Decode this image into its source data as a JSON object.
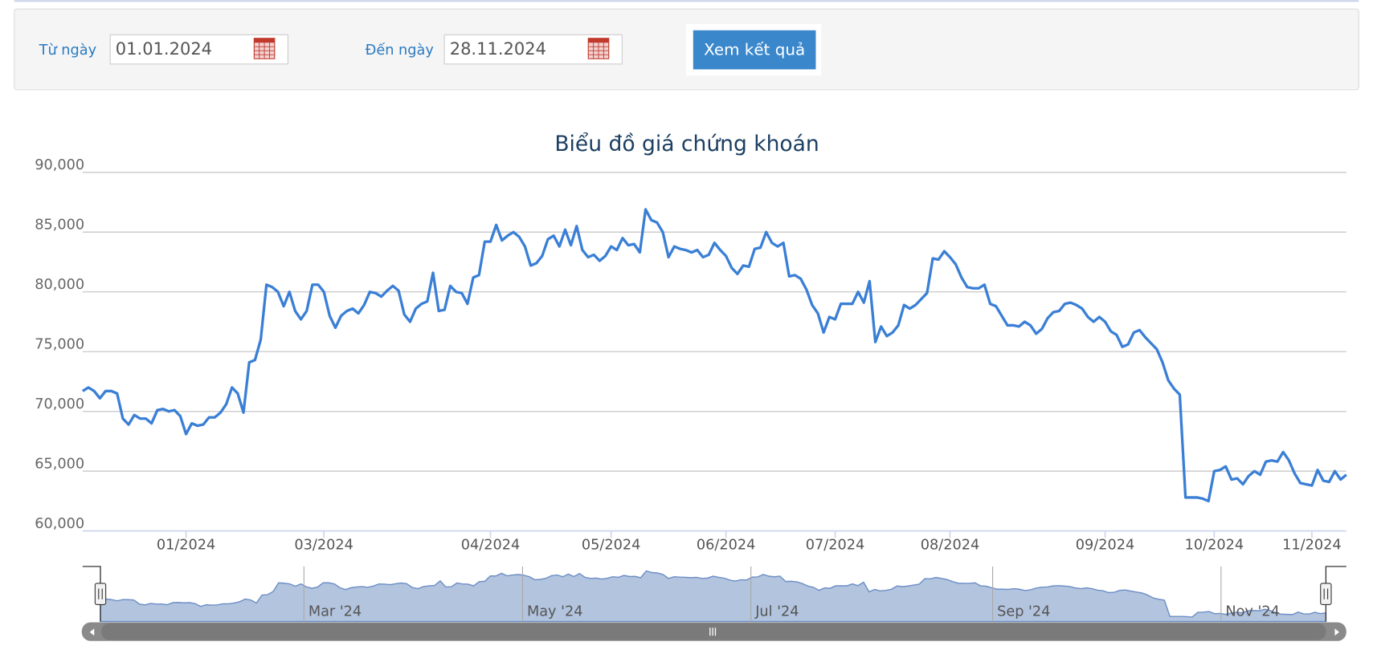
{
  "form": {
    "from_label": "Từ ngày",
    "from_value": "01.01.2024",
    "to_label": "Đến ngày",
    "to_value": "28.11.2024",
    "button": "Xem kết quả"
  },
  "chart_data": {
    "type": "line",
    "title": "Biểu đồ giá chứng khoán",
    "color": "#3a7fd5",
    "grid": true,
    "ylim": [
      60000,
      90000
    ],
    "yticks": [
      {
        "value": 60000,
        "label": "60,000"
      },
      {
        "value": 65000,
        "label": "65,000"
      },
      {
        "value": 70000,
        "label": "70,000"
      },
      {
        "value": 75000,
        "label": "75,000"
      },
      {
        "value": 80000,
        "label": "80,000"
      },
      {
        "value": 85000,
        "label": "85,000"
      },
      {
        "value": 90000,
        "label": "90,000"
      }
    ],
    "categories": [
      null,
      null,
      null,
      null,
      null,
      null,
      null,
      null,
      null,
      null,
      null,
      null,
      null,
      null,
      null,
      null,
      null,
      null,
      "01/2024",
      null,
      null,
      null,
      null,
      null,
      null,
      null,
      null,
      null,
      null,
      null,
      null,
      null,
      null,
      null,
      null,
      null,
      null,
      null,
      null,
      null,
      null,
      null,
      "03/2024",
      null,
      null,
      null,
      null,
      null,
      null,
      null,
      null,
      null,
      null,
      null,
      null,
      null,
      null,
      null,
      null,
      null,
      null,
      null,
      null,
      null,
      null,
      null,
      null,
      null,
      null,
      null,
      null,
      "04/2024",
      null,
      null,
      null,
      null,
      null,
      null,
      null,
      null,
      null,
      null,
      null,
      null,
      null,
      null,
      null,
      null,
      null,
      null,
      null,
      null,
      "05/2024",
      null,
      null,
      null,
      null,
      null,
      null,
      null,
      null,
      null,
      null,
      null,
      null,
      null,
      null,
      null,
      null,
      null,
      null,
      null,
      "06/2024",
      null,
      null,
      null,
      null,
      null,
      null,
      null,
      null,
      null,
      null,
      null,
      null,
      null,
      null,
      null,
      null,
      null,
      null,
      "07/2024",
      null,
      null,
      null,
      null,
      null,
      null,
      null,
      null,
      null,
      null,
      null,
      null,
      null,
      null,
      null,
      null,
      null,
      null,
      null,
      "08/2024",
      null,
      null,
      null,
      null,
      null,
      null,
      null,
      null,
      null,
      null,
      null,
      null,
      null,
      null,
      null,
      null,
      null,
      null,
      null,
      null,
      null,
      null,
      null,
      null,
      null,
      null,
      "09/2024",
      null,
      null,
      null,
      null,
      null,
      null,
      null,
      null,
      null,
      null,
      null,
      null,
      null,
      null,
      null,
      null,
      null,
      null,
      "10/2024",
      null,
      null,
      null,
      null,
      null,
      null,
      null,
      null,
      null,
      null,
      null,
      null,
      null,
      null,
      null,
      null,
      "11/2024",
      null,
      null,
      null,
      null,
      null,
      null
    ],
    "values": [
      71700,
      72000,
      71700,
      71100,
      71700,
      71700,
      71500,
      69400,
      68900,
      69700,
      69400,
      69400,
      69000,
      70100,
      70200,
      70000,
      70100,
      69600,
      68100,
      69000,
      68800,
      68900,
      69500,
      69500,
      69900,
      70600,
      72000,
      71500,
      69900,
      74100,
      74300,
      76000,
      80600,
      80400,
      80000,
      78800,
      80000,
      78400,
      77700,
      78400,
      80600,
      80600,
      80000,
      78000,
      77000,
      78000,
      78400,
      78600,
      78200,
      78900,
      80000,
      79900,
      79600,
      80100,
      80500,
      80100,
      78100,
      77500,
      78600,
      79000,
      79200,
      81600,
      78400,
      78500,
      80500,
      80000,
      79900,
      79000,
      81200,
      81400,
      84200,
      84200,
      85600,
      84300,
      84700,
      85000,
      84600,
      83800,
      82200,
      82400,
      83000,
      84400,
      84700,
      83800,
      85200,
      83900,
      85500,
      83500,
      82900,
      83100,
      82600,
      83000,
      83800,
      83500,
      84500,
      83900,
      84000,
      83300,
      86900,
      86000,
      85800,
      85000,
      82900,
      83800,
      83600,
      83500,
      83300,
      83500,
      82900,
      83100,
      84100,
      83500,
      83000,
      82000,
      81500,
      82200,
      82100,
      83600,
      83700,
      85000,
      84100,
      83800,
      84100,
      81300,
      81400,
      81100,
      80200,
      78900,
      78200,
      76600,
      77900,
      77700,
      79000,
      79000,
      79000,
      80000,
      79100,
      80900,
      75800,
      77100,
      76300,
      76600,
      77200,
      78900,
      78600,
      78900,
      79400,
      79900,
      82800,
      82700,
      83400,
      82900,
      82300,
      81200,
      80400,
      80300,
      80300,
      80600,
      79000,
      78800,
      78000,
      77200,
      77200,
      77100,
      77500,
      77200,
      76500,
      76900,
      77800,
      78300,
      78400,
      79000,
      79100,
      78900,
      78600,
      77900,
      77500,
      77900,
      77500,
      76700,
      76400,
      75400,
      75600,
      76600,
      76800,
      76200,
      75700,
      75200,
      74100,
      72600,
      71900,
      71400,
      62800,
      62800,
      62800,
      62700,
      62500,
      65000,
      65100,
      65400,
      64300,
      64400,
      63900,
      64600,
      65000,
      64700,
      65800,
      65900,
      65800,
      66600,
      65900,
      64800,
      64000,
      63900,
      63800,
      65100,
      64200,
      64100,
      65000,
      64300,
      64700
    ]
  },
  "navigator": {
    "labels": [
      "Mar '24",
      "May '24",
      "Jul '24",
      "Sep '24",
      "Nov '24"
    ]
  }
}
